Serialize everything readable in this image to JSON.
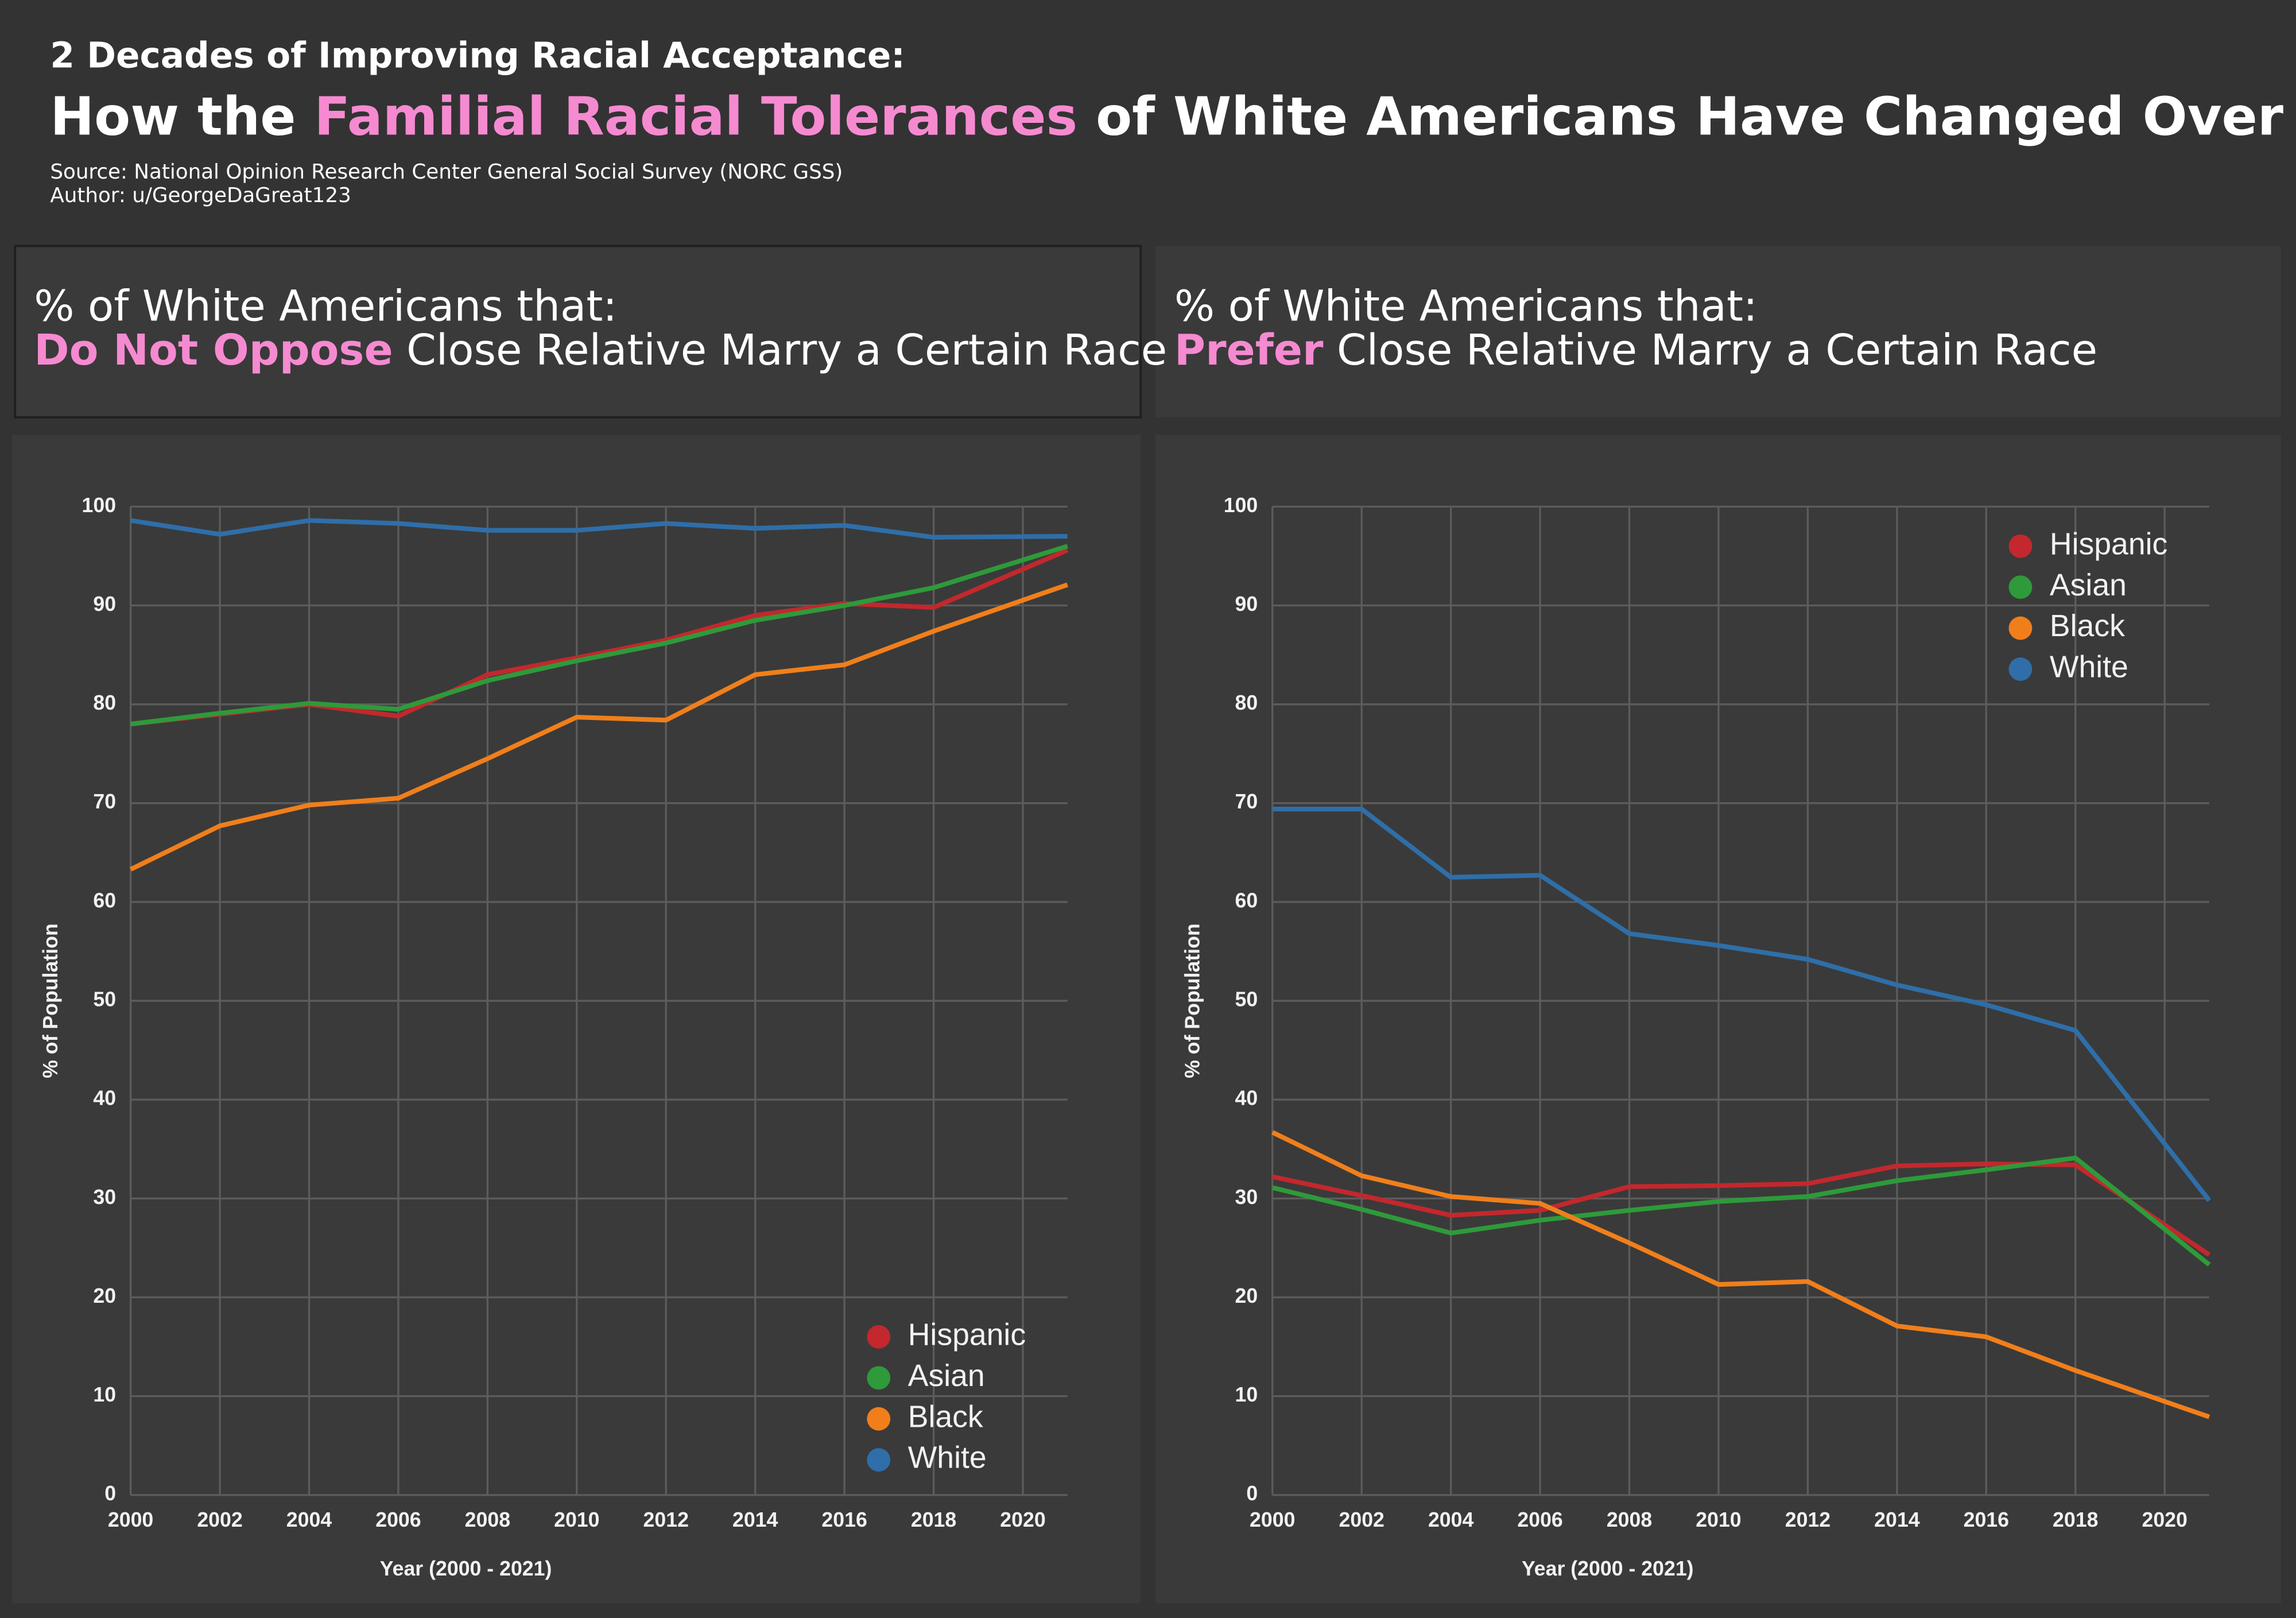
{
  "header": {
    "kicker": "2 Decades of Improving Racial Acceptance:",
    "title": [
      "How the ",
      "Familial Racial Tolerances",
      " of White Americans Have Changed Over Time"
    ],
    "source": "Source: National Opinion Research Center General Social Survey (NORC GSS)",
    "author": "Author: u/GeorgeDaGreat123"
  },
  "chart_data": [
    {
      "type": "line",
      "title": "% of White Americans that:",
      "subtitle": [
        "Do Not Oppose",
        " Close Relative Marry a Certain Race"
      ],
      "x_label": "Year (2000 - 2021)",
      "y_label": "% of Population",
      "x": [
        2000,
        2002,
        2004,
        2006,
        2008,
        2010,
        2012,
        2014,
        2016,
        2018,
        2021
      ],
      "xlim": [
        2000,
        2021
      ],
      "xticks": [
        2000,
        2002,
        2004,
        2006,
        2008,
        2010,
        2012,
        2014,
        2016,
        2018,
        2020
      ],
      "ylim": [
        0,
        100
      ],
      "yticks": [
        0,
        10,
        20,
        30,
        40,
        50,
        60,
        70,
        80,
        90,
        100
      ],
      "grid": true,
      "legend": "lower right",
      "series": [
        {
          "name": "Hispanic",
          "color": "#c2282d",
          "values": [
            78,
            79,
            80,
            78.8,
            83,
            84.7,
            86.5,
            89,
            90.2,
            89.8,
            95.6
          ]
        },
        {
          "name": "Asian",
          "color": "#2e9a3a",
          "values": [
            78,
            79.1,
            80.1,
            79.5,
            82.4,
            84.4,
            86.2,
            88.5,
            90,
            91.8,
            96
          ]
        },
        {
          "name": "Black",
          "color": "#f07f1b",
          "values": [
            63.3,
            67.7,
            69.8,
            70.5,
            74.5,
            78.7,
            78.4,
            83,
            84,
            87.4,
            92.1
          ]
        },
        {
          "name": "White",
          "color": "#2f6ea8",
          "values": [
            98.6,
            97.2,
            98.6,
            98.3,
            97.6,
            97.6,
            98.3,
            97.8,
            98.1,
            96.9,
            97
          ]
        }
      ]
    },
    {
      "type": "line",
      "title": "% of White Americans that:",
      "subtitle": [
        "Prefer",
        " Close Relative Marry a Certain Race"
      ],
      "x_label": "Year (2000 - 2021)",
      "y_label": "% of Population",
      "x": [
        2000,
        2002,
        2004,
        2006,
        2008,
        2010,
        2012,
        2014,
        2016,
        2018,
        2021
      ],
      "xlim": [
        2000,
        2021
      ],
      "xticks": [
        2000,
        2002,
        2004,
        2006,
        2008,
        2010,
        2012,
        2014,
        2016,
        2018,
        2020
      ],
      "ylim": [
        0,
        100
      ],
      "yticks": [
        0,
        10,
        20,
        30,
        40,
        50,
        60,
        70,
        80,
        90,
        100
      ],
      "grid": true,
      "legend": "upper right",
      "series": [
        {
          "name": "Hispanic",
          "color": "#c2282d",
          "values": [
            32.2,
            30.3,
            28.3,
            28.8,
            31.2,
            31.3,
            31.5,
            33.3,
            33.5,
            33.4,
            24.3
          ]
        },
        {
          "name": "Asian",
          "color": "#2e9a3a",
          "values": [
            31.1,
            28.9,
            26.5,
            27.8,
            28.8,
            29.7,
            30.2,
            31.8,
            32.9,
            34.1,
            23.3
          ]
        },
        {
          "name": "Black",
          "color": "#f07f1b",
          "values": [
            36.7,
            32.3,
            30.2,
            29.5,
            25.5,
            21.3,
            21.6,
            17.1,
            16,
            12.6,
            7.9
          ]
        },
        {
          "name": "White",
          "color": "#2f6ea8",
          "values": [
            69.4,
            69.4,
            62.5,
            62.7,
            56.8,
            55.6,
            54.2,
            51.6,
            49.6,
            47,
            29.8
          ]
        }
      ]
    }
  ]
}
